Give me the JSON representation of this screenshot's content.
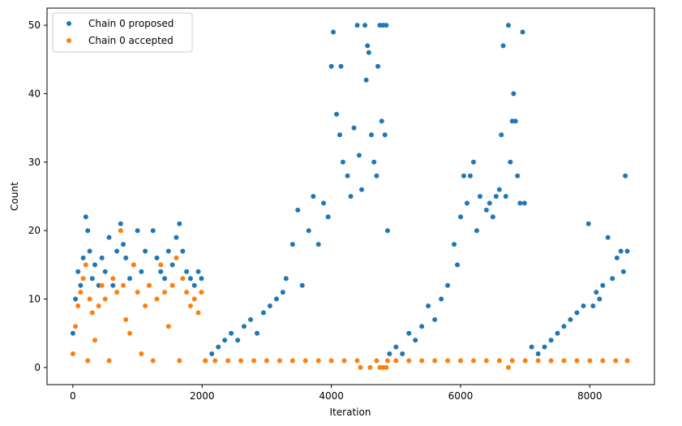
{
  "chart_data": {
    "type": "scatter",
    "title": "",
    "xlabel": "Iteration",
    "ylabel": "Count",
    "xlim": [
      -400,
      9000
    ],
    "ylim": [
      -2.5,
      52.5
    ],
    "xticks": [
      0,
      2000,
      4000,
      6000,
      8000
    ],
    "yticks": [
      0,
      10,
      20,
      30,
      40,
      50
    ],
    "grid": false,
    "legend_position": "top-left",
    "series": [
      {
        "name": "Chain 0 proposed",
        "color": "#1f77b4",
        "points": [
          [
            0,
            5
          ],
          [
            40,
            10
          ],
          [
            80,
            14
          ],
          [
            120,
            12
          ],
          [
            160,
            16
          ],
          [
            200,
            22
          ],
          [
            230,
            20
          ],
          [
            260,
            17
          ],
          [
            300,
            13
          ],
          [
            340,
            15
          ],
          [
            400,
            12
          ],
          [
            450,
            16
          ],
          [
            500,
            14
          ],
          [
            560,
            19
          ],
          [
            620,
            12
          ],
          [
            680,
            17
          ],
          [
            740,
            21
          ],
          [
            780,
            18
          ],
          [
            820,
            16
          ],
          [
            880,
            13
          ],
          [
            940,
            15
          ],
          [
            1000,
            20
          ],
          [
            1060,
            14
          ],
          [
            1120,
            17
          ],
          [
            1180,
            12
          ],
          [
            1240,
            20
          ],
          [
            1300,
            16
          ],
          [
            1360,
            14
          ],
          [
            1420,
            13
          ],
          [
            1480,
            17
          ],
          [
            1540,
            15
          ],
          [
            1600,
            19
          ],
          [
            1650,
            21
          ],
          [
            1700,
            17
          ],
          [
            1760,
            14
          ],
          [
            1820,
            13
          ],
          [
            1880,
            12
          ],
          [
            1940,
            14
          ],
          [
            1990,
            13
          ],
          [
            2050,
            1
          ],
          [
            2150,
            2
          ],
          [
            2250,
            3
          ],
          [
            2350,
            4
          ],
          [
            2450,
            5
          ],
          [
            2550,
            4
          ],
          [
            2650,
            6
          ],
          [
            2750,
            7
          ],
          [
            2850,
            5
          ],
          [
            2950,
            8
          ],
          [
            3050,
            9
          ],
          [
            3150,
            10
          ],
          [
            3250,
            11
          ],
          [
            3300,
            13
          ],
          [
            3400,
            18
          ],
          [
            3480,
            23
          ],
          [
            3550,
            12
          ],
          [
            3650,
            20
          ],
          [
            3720,
            25
          ],
          [
            3800,
            18
          ],
          [
            3880,
            24
          ],
          [
            3950,
            22
          ],
          [
            4000,
            44
          ],
          [
            4030,
            49
          ],
          [
            4080,
            37
          ],
          [
            4130,
            34
          ],
          [
            4150,
            44
          ],
          [
            4180,
            30
          ],
          [
            4250,
            28
          ],
          [
            4300,
            25
          ],
          [
            4350,
            35
          ],
          [
            4400,
            50
          ],
          [
            4430,
            31
          ],
          [
            4470,
            26
          ],
          [
            4520,
            50
          ],
          [
            4540,
            42
          ],
          [
            4560,
            47
          ],
          [
            4580,
            46
          ],
          [
            4620,
            34
          ],
          [
            4660,
            30
          ],
          [
            4700,
            28
          ],
          [
            4720,
            44
          ],
          [
            4750,
            50
          ],
          [
            4780,
            36
          ],
          [
            4800,
            50
          ],
          [
            4830,
            34
          ],
          [
            4850,
            50
          ],
          [
            4870,
            20
          ],
          [
            4900,
            2
          ],
          [
            5000,
            3
          ],
          [
            5100,
            2
          ],
          [
            5200,
            5
          ],
          [
            5300,
            4
          ],
          [
            5400,
            6
          ],
          [
            5500,
            9
          ],
          [
            5600,
            7
          ],
          [
            5700,
            10
          ],
          [
            5800,
            12
          ],
          [
            5900,
            18
          ],
          [
            5950,
            15
          ],
          [
            6000,
            22
          ],
          [
            6050,
            28
          ],
          [
            6100,
            24
          ],
          [
            6150,
            28
          ],
          [
            6200,
            30
          ],
          [
            6250,
            20
          ],
          [
            6300,
            25
          ],
          [
            6400,
            23
          ],
          [
            6450,
            24
          ],
          [
            6500,
            22
          ],
          [
            6550,
            25
          ],
          [
            6600,
            26
          ],
          [
            6630,
            34
          ],
          [
            6660,
            47
          ],
          [
            6700,
            25
          ],
          [
            6740,
            50
          ],
          [
            6770,
            30
          ],
          [
            6800,
            36
          ],
          [
            6820,
            40
          ],
          [
            6850,
            36
          ],
          [
            6880,
            28
          ],
          [
            6920,
            24
          ],
          [
            6960,
            49
          ],
          [
            6990,
            24
          ],
          [
            7100,
            3
          ],
          [
            7200,
            2
          ],
          [
            7300,
            3
          ],
          [
            7400,
            4
          ],
          [
            7500,
            5
          ],
          [
            7600,
            6
          ],
          [
            7700,
            7
          ],
          [
            7800,
            8
          ],
          [
            7900,
            9
          ],
          [
            7980,
            21
          ],
          [
            8050,
            9
          ],
          [
            8100,
            11
          ],
          [
            8150,
            10
          ],
          [
            8200,
            12
          ],
          [
            8280,
            19
          ],
          [
            8350,
            13
          ],
          [
            8420,
            16
          ],
          [
            8480,
            17
          ],
          [
            8520,
            14
          ],
          [
            8550,
            28
          ],
          [
            8580,
            17
          ]
        ]
      },
      {
        "name": "Chain 0 accepted",
        "color": "#ff7f0e",
        "points": [
          [
            0,
            2
          ],
          [
            40,
            6
          ],
          [
            80,
            9
          ],
          [
            120,
            11
          ],
          [
            160,
            13
          ],
          [
            200,
            15
          ],
          [
            230,
            1
          ],
          [
            260,
            10
          ],
          [
            300,
            8
          ],
          [
            340,
            4
          ],
          [
            400,
            9
          ],
          [
            450,
            12
          ],
          [
            500,
            10
          ],
          [
            560,
            1
          ],
          [
            620,
            13
          ],
          [
            680,
            11
          ],
          [
            740,
            20
          ],
          [
            780,
            12
          ],
          [
            820,
            7
          ],
          [
            880,
            5
          ],
          [
            940,
            15
          ],
          [
            1000,
            11
          ],
          [
            1060,
            2
          ],
          [
            1120,
            9
          ],
          [
            1180,
            12
          ],
          [
            1240,
            1
          ],
          [
            1300,
            10
          ],
          [
            1360,
            15
          ],
          [
            1420,
            11
          ],
          [
            1480,
            6
          ],
          [
            1540,
            12
          ],
          [
            1600,
            16
          ],
          [
            1650,
            1
          ],
          [
            1700,
            13
          ],
          [
            1760,
            11
          ],
          [
            1820,
            9
          ],
          [
            1880,
            10
          ],
          [
            1940,
            8
          ],
          [
            1990,
            11
          ],
          [
            2050,
            1
          ],
          [
            2200,
            1
          ],
          [
            2400,
            1
          ],
          [
            2600,
            1
          ],
          [
            2800,
            1
          ],
          [
            3000,
            1
          ],
          [
            3200,
            1
          ],
          [
            3400,
            1
          ],
          [
            3600,
            1
          ],
          [
            3800,
            1
          ],
          [
            4000,
            1
          ],
          [
            4200,
            1
          ],
          [
            4400,
            1
          ],
          [
            4450,
            0
          ],
          [
            4600,
            0
          ],
          [
            4700,
            1
          ],
          [
            4750,
            0
          ],
          [
            4800,
            0
          ],
          [
            4850,
            0
          ],
          [
            4870,
            1
          ],
          [
            5000,
            1
          ],
          [
            5200,
            1
          ],
          [
            5400,
            1
          ],
          [
            5600,
            1
          ],
          [
            5800,
            1
          ],
          [
            6000,
            1
          ],
          [
            6200,
            1
          ],
          [
            6400,
            1
          ],
          [
            6600,
            1
          ],
          [
            6740,
            0
          ],
          [
            6800,
            1
          ],
          [
            7000,
            1
          ],
          [
            7200,
            1
          ],
          [
            7400,
            1
          ],
          [
            7600,
            1
          ],
          [
            7800,
            1
          ],
          [
            8000,
            1
          ],
          [
            8200,
            1
          ],
          [
            8400,
            1
          ],
          [
            8580,
            1
          ]
        ]
      }
    ]
  }
}
